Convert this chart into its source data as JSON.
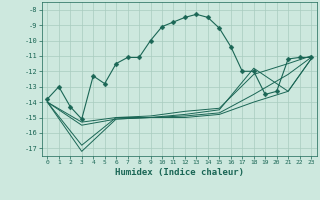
{
  "xlabel": "Humidex (Indice chaleur)",
  "bg_color": "#cde8de",
  "grid_color": "#a8ccbf",
  "line_color": "#1a6655",
  "xlim": [
    -0.5,
    23.5
  ],
  "ylim": [
    -17.5,
    -7.5
  ],
  "yticks": [
    -17,
    -16,
    -15,
    -14,
    -13,
    -12,
    -11,
    -10,
    -9,
    -8
  ],
  "xticks": [
    0,
    1,
    2,
    3,
    4,
    5,
    6,
    7,
    8,
    9,
    10,
    11,
    12,
    13,
    14,
    15,
    16,
    17,
    18,
    19,
    20,
    21,
    22,
    23
  ],
  "lines": [
    {
      "x": [
        0,
        1,
        2,
        3,
        4,
        5,
        6,
        7,
        8,
        9,
        10,
        11,
        12,
        13,
        14,
        15,
        16,
        17,
        18,
        19,
        20,
        21,
        22,
        23
      ],
      "y": [
        -13.8,
        -13.0,
        -14.3,
        -15.1,
        -12.3,
        -12.8,
        -11.5,
        -11.1,
        -11.1,
        -10.0,
        -9.1,
        -8.8,
        -8.5,
        -8.3,
        -8.5,
        -9.2,
        -10.4,
        -12.0,
        -12.0,
        -13.5,
        -13.3,
        -11.2,
        -11.1,
        -11.1
      ],
      "marker": "D",
      "markersize": 2.5
    },
    {
      "x": [
        0,
        3,
        6,
        9,
        12,
        15,
        18,
        21,
        23
      ],
      "y": [
        -14.0,
        -16.8,
        -15.0,
        -15.0,
        -15.0,
        -14.8,
        -14.0,
        -13.3,
        -11.2
      ],
      "marker": null
    },
    {
      "x": [
        0,
        3,
        6,
        9,
        12,
        15,
        18,
        21,
        23
      ],
      "y": [
        -14.0,
        -15.5,
        -15.1,
        -15.0,
        -14.9,
        -14.7,
        -13.5,
        -12.2,
        -11.1
      ],
      "marker": null
    },
    {
      "x": [
        0,
        3,
        6,
        9,
        12,
        15,
        18,
        21,
        23
      ],
      "y": [
        -14.0,
        -15.3,
        -15.0,
        -14.9,
        -14.6,
        -14.4,
        -12.2,
        -11.5,
        -11.0
      ],
      "marker": null
    },
    {
      "x": [
        0,
        3,
        6,
        9,
        12,
        15,
        18,
        21,
        23
      ],
      "y": [
        -14.0,
        -17.2,
        -15.1,
        -15.0,
        -14.8,
        -14.5,
        -11.8,
        -13.3,
        -11.2
      ],
      "marker": null
    }
  ]
}
